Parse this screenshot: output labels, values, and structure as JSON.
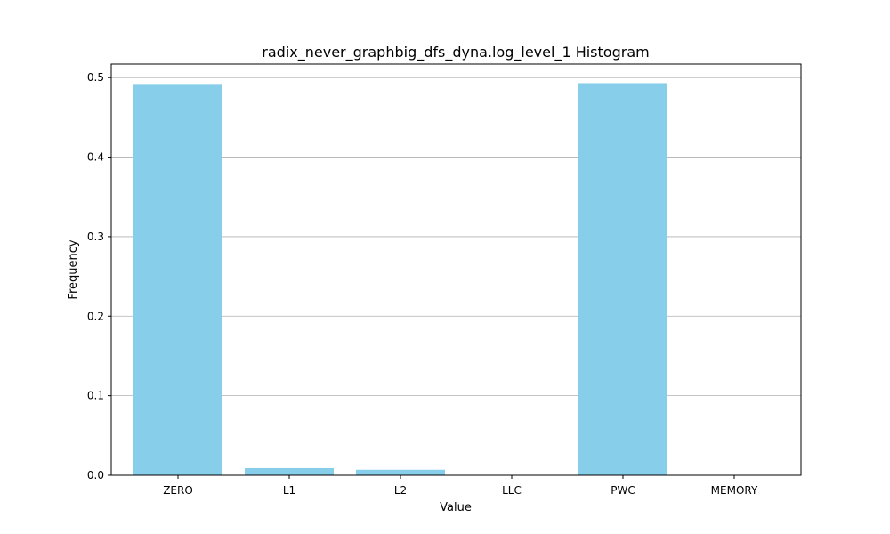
{
  "chart_data": {
    "type": "bar",
    "title": "radix_never_graphbig_dfs_dyna.log_level_1 Histogram",
    "xlabel": "Value",
    "ylabel": "Frequency",
    "categories": [
      "ZERO",
      "L1",
      "L2",
      "LLC",
      "PWC",
      "MEMORY"
    ],
    "values": [
      0.492,
      0.009,
      0.007,
      0.0,
      0.493,
      0.0
    ],
    "ylim": [
      0,
      0.517
    ],
    "yticks": [
      0.0,
      0.1,
      0.2,
      0.3,
      0.4,
      0.5
    ],
    "ytick_labels": [
      "0.0",
      "0.1",
      "0.2",
      "0.3",
      "0.4",
      "0.5"
    ],
    "grid": "horizontal",
    "bar_color": "#87CEEB",
    "grid_color": "#b0b0b0"
  }
}
